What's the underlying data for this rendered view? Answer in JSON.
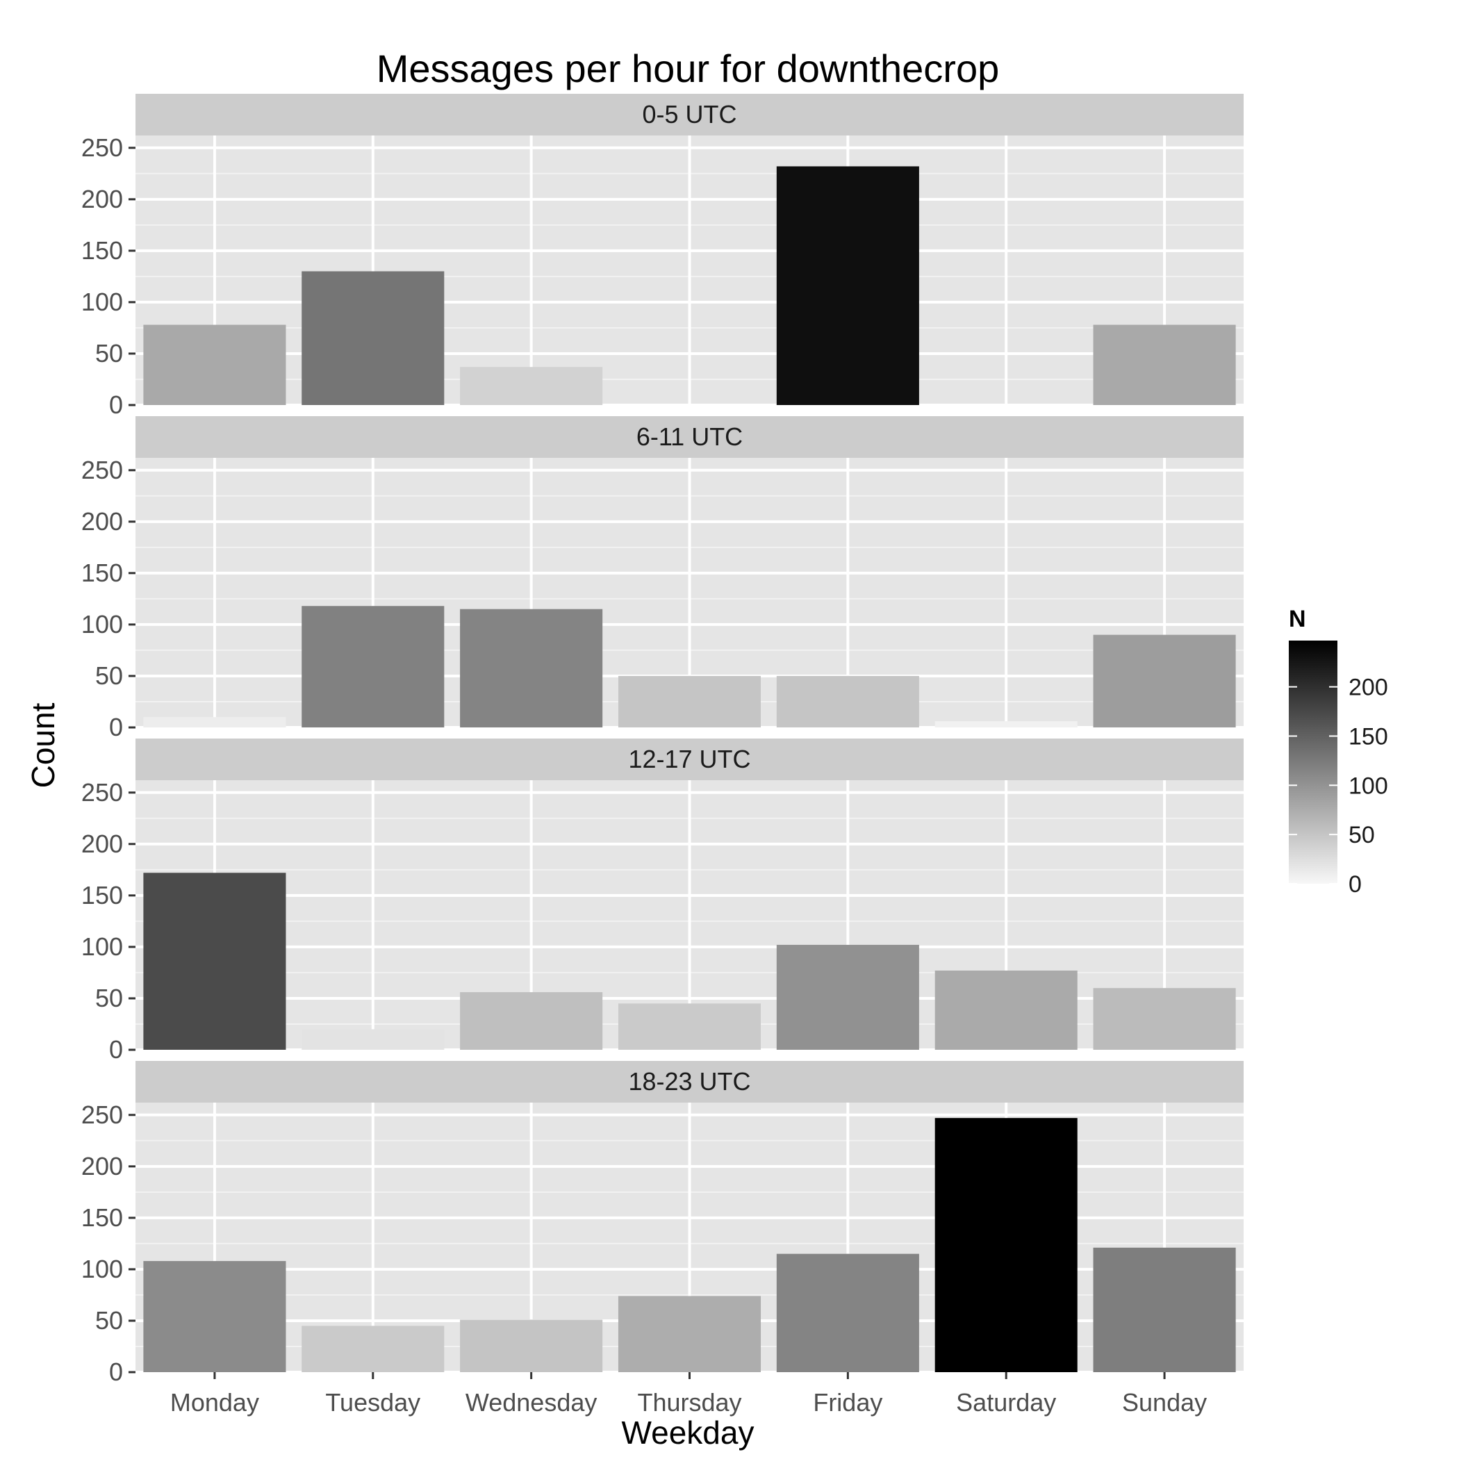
{
  "chart_data": {
    "type": "bar",
    "title": "Messages per hour for downthecrop",
    "xlabel": "Weekday",
    "ylabel": "Count",
    "categories": [
      "Monday",
      "Tuesday",
      "Wednesday",
      "Thursday",
      "Friday",
      "Saturday",
      "Sunday"
    ],
    "ylim": [
      0,
      262
    ],
    "y_ticks": [
      0,
      50,
      100,
      150,
      200,
      250
    ],
    "grid": true,
    "facets": [
      {
        "label": "0-5 UTC",
        "values": [
          78,
          130,
          37,
          0,
          232,
          0,
          78
        ]
      },
      {
        "label": "6-11 UTC",
        "values": [
          10,
          118,
          115,
          50,
          50,
          6,
          90
        ]
      },
      {
        "label": "12-17 UTC",
        "values": [
          172,
          20,
          56,
          45,
          102,
          77,
          60
        ]
      },
      {
        "label": "18-23 UTC",
        "values": [
          108,
          45,
          51,
          74,
          115,
          247,
          121
        ]
      }
    ],
    "legend": {
      "title": "N",
      "placement": "right",
      "ticks": [
        0,
        50,
        100,
        150,
        200
      ],
      "range": [
        0,
        247
      ],
      "color_low": "#f7f7f7",
      "color_high": "#000000"
    },
    "colors": {
      "panel_background": "#e5e5e5",
      "grid_major": "#ffffff",
      "grid_minor": "#f2f2f2",
      "strip_background": "#cccccc"
    }
  }
}
